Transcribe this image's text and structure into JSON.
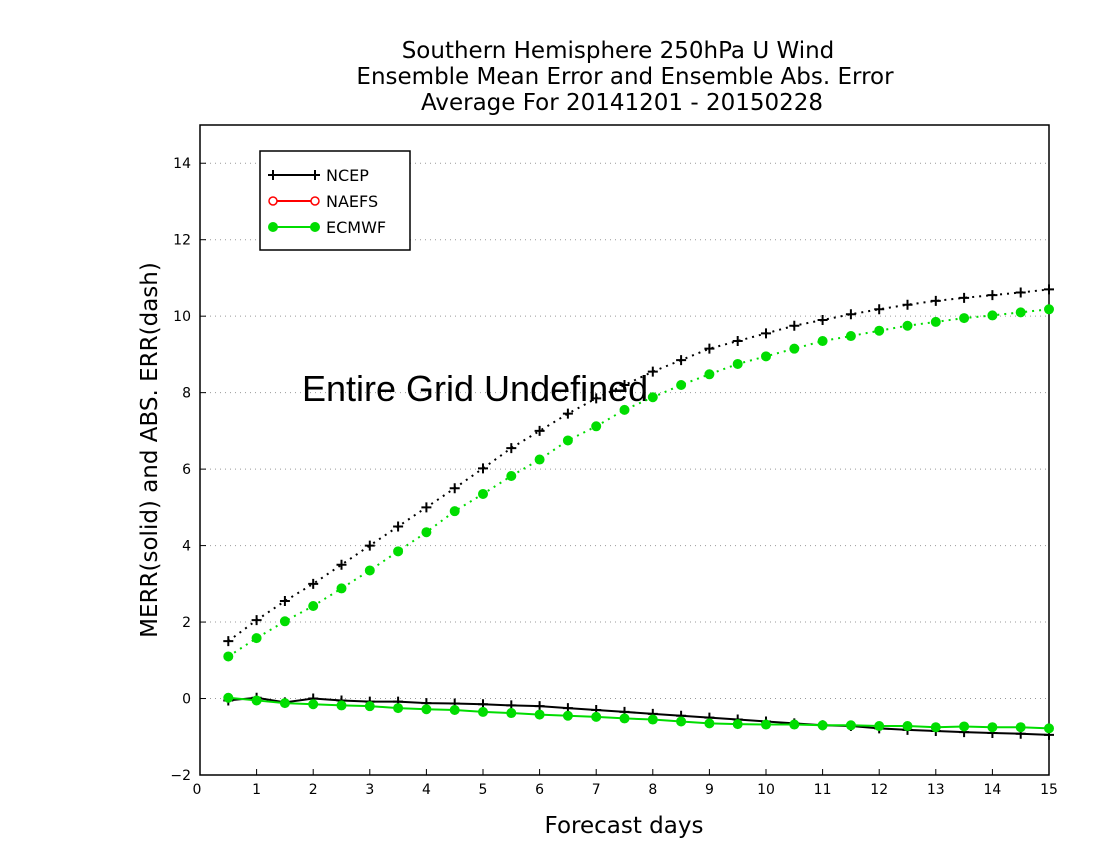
{
  "chart_data": {
    "type": "line",
    "title_lines": [
      "Southern Hemisphere 250hPa U Wind",
      "Ensemble Mean Error and Ensemble Abs. Error",
      "Average For 20141201 - 20150228"
    ],
    "xlabel": "Forecast days",
    "ylabel": "MERR(solid) and ABS. ERR(dash)",
    "xlim": [
      0,
      15
    ],
    "ylim": [
      -2,
      15
    ],
    "x_ticks": [
      "0",
      "1",
      "2",
      "3",
      "4",
      "5",
      "6",
      "7",
      "8",
      "9",
      "10",
      "11",
      "12",
      "13",
      "14",
      "15"
    ],
    "y_ticks": [
      "−2",
      "0",
      "2",
      "4",
      "6",
      "8",
      "10",
      "12",
      "14"
    ],
    "annotation": "Entire Grid Undefined",
    "grid": "dotted horizontal",
    "legend_position": "top-left",
    "x": [
      0.5,
      1,
      1.5,
      2,
      2.5,
      3,
      3.5,
      4,
      4.5,
      5,
      5.5,
      6,
      6.5,
      7,
      7.5,
      8,
      8.5,
      9,
      9.5,
      10,
      10.5,
      11,
      11.5,
      12,
      12.5,
      13,
      13.5,
      14,
      14.5,
      15
    ],
    "series": [
      {
        "name": "NCEP",
        "color": "#000000",
        "marker": "plus",
        "abs_err": [
          1.5,
          2.05,
          2.55,
          3.0,
          3.5,
          4.0,
          4.5,
          5.0,
          5.5,
          6.02,
          6.55,
          7.0,
          7.45,
          7.85,
          8.2,
          8.55,
          8.85,
          9.15,
          9.35,
          9.55,
          9.75,
          9.9,
          10.05,
          10.18,
          10.3,
          10.4,
          10.48,
          10.55,
          10.62,
          10.7
        ],
        "mean_err": [
          -0.05,
          0.02,
          -0.1,
          0.0,
          -0.05,
          -0.08,
          -0.08,
          -0.12,
          -0.13,
          -0.15,
          -0.18,
          -0.2,
          -0.25,
          -0.3,
          -0.35,
          -0.4,
          -0.45,
          -0.5,
          -0.55,
          -0.6,
          -0.65,
          -0.7,
          -0.72,
          -0.78,
          -0.82,
          -0.85,
          -0.88,
          -0.9,
          -0.92,
          -0.95
        ]
      },
      {
        "name": "NAEFS",
        "color": "#ff0000",
        "marker": "open-circle",
        "abs_err": [],
        "mean_err": []
      },
      {
        "name": "ECMWF",
        "color": "#00dd00",
        "marker": "filled-circle",
        "abs_err": [
          1.1,
          1.58,
          2.02,
          2.42,
          2.88,
          3.35,
          3.85,
          4.35,
          4.9,
          5.35,
          5.82,
          6.25,
          6.75,
          7.12,
          7.55,
          7.88,
          8.2,
          8.48,
          8.75,
          8.95,
          9.15,
          9.35,
          9.48,
          9.62,
          9.75,
          9.85,
          9.95,
          10.02,
          10.1,
          10.18
        ],
        "mean_err": [
          0.02,
          -0.05,
          -0.12,
          -0.15,
          -0.18,
          -0.2,
          -0.25,
          -0.28,
          -0.3,
          -0.35,
          -0.38,
          -0.42,
          -0.45,
          -0.48,
          -0.52,
          -0.55,
          -0.6,
          -0.65,
          -0.67,
          -0.68,
          -0.68,
          -0.7,
          -0.7,
          -0.72,
          -0.72,
          -0.75,
          -0.73,
          -0.75,
          -0.75,
          -0.78
        ]
      }
    ]
  }
}
